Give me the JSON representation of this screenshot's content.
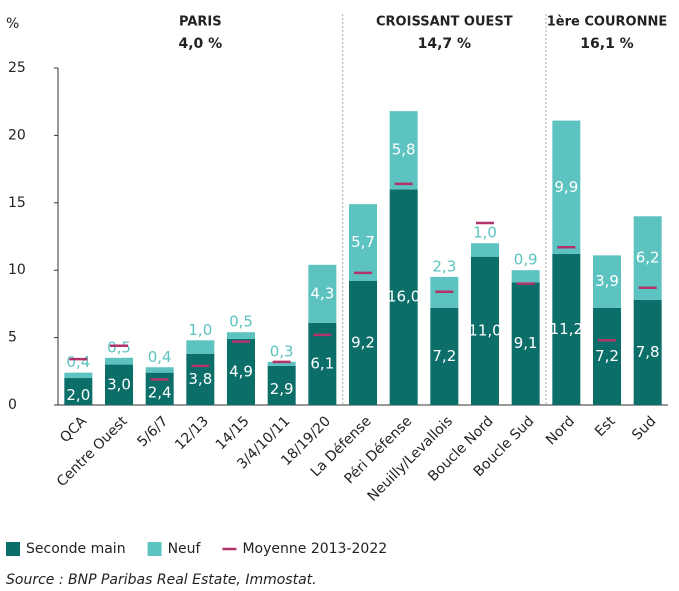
{
  "chart_data": {
    "type": "bar",
    "stacked": true,
    "y_label": "%",
    "categories": [
      "QCA",
      "Centre Ouest",
      "5/6/7",
      "12/13",
      "14/15",
      "3/4/10/11",
      "18/19/20",
      "La Défense",
      "Péri Défense",
      "Neuilly/Levallois",
      "Boucle Nord",
      "Boucle Sud",
      "Nord",
      "Est",
      "Sud"
    ],
    "series": [
      {
        "name": "Seconde main",
        "color": "#0b6e69",
        "values": [
          2.0,
          3.0,
          2.4,
          3.8,
          4.9,
          2.9,
          6.1,
          9.2,
          16.0,
          7.2,
          11.0,
          9.1,
          11.2,
          7.2,
          7.8
        ],
        "value_labels": [
          "2,0",
          "3,0",
          "2,4",
          "3,8",
          "4,9",
          "2,9",
          "6,1",
          "9,2",
          "16,0",
          "7,2",
          "11,0",
          "9,1",
          "11,2",
          "7,2",
          "7,8"
        ]
      },
      {
        "name": "Neuf",
        "color": "#5cc3c0",
        "values": [
          0.4,
          0.5,
          0.4,
          1.0,
          0.5,
          0.3,
          4.3,
          5.7,
          5.8,
          2.3,
          1.0,
          0.9,
          9.9,
          3.9,
          6.2
        ],
        "value_labels": [
          "0,4",
          "0,5",
          "0,4",
          "1,0",
          "0,5",
          "0,3",
          "4,3",
          "5,7",
          "5,8",
          "2,3",
          "1,0",
          "0,9",
          "9,9",
          "3,9",
          "6,2"
        ]
      },
      {
        "name": "Moyenne 2013-2022",
        "type": "marker",
        "color": "#b2336c",
        "values": [
          3.4,
          4.4,
          1.9,
          2.9,
          4.7,
          3.2,
          5.2,
          9.8,
          16.4,
          8.4,
          13.5,
          9.0,
          11.7,
          4.8,
          8.7
        ]
      }
    ],
    "groups": [
      {
        "name": "PARIS",
        "value": 4.0,
        "value_label": "4,0 %",
        "members": [
          "QCA",
          "Centre Ouest",
          "5/6/7",
          "12/13",
          "14/15",
          "3/4/10/11",
          "18/19/20"
        ]
      },
      {
        "name": "CROISSANT OUEST",
        "value": 14.7,
        "value_label": "14,7 %",
        "members": [
          "La Défense",
          "Péri Défense",
          "Neuilly/Levallois",
          "Boucle Nord",
          "Boucle Sud"
        ]
      },
      {
        "name": "1ère COURONNE",
        "value": 16.1,
        "value_label": "16,1 %",
        "members": [
          "Nord",
          "Est",
          "Sud"
        ]
      }
    ],
    "ylim": [
      0,
      25
    ],
    "yticks": [
      0,
      5,
      10,
      15,
      20,
      25
    ],
    "grid": false,
    "source": "Source : BNP Paribas Real Estate, Immostat."
  }
}
